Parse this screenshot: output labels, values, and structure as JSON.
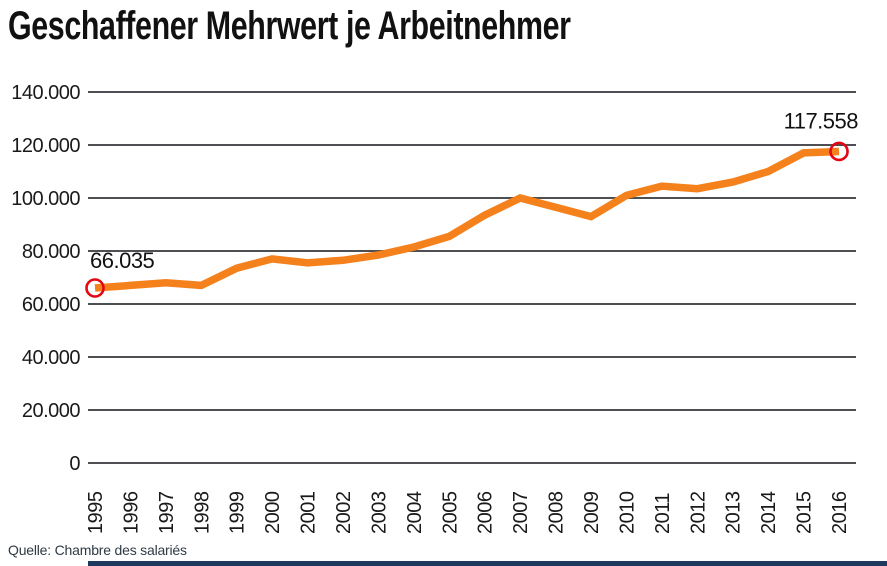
{
  "header": {
    "title": "Geschaffener Mehrwert je Arbeitnehmer"
  },
  "footer": {
    "source": "Quelle: Chambre des salariés"
  },
  "colors": {
    "line": "#F5811D",
    "circle": "#E30613",
    "grid": "#4D4F53",
    "text": "#1A1A1A",
    "footer_bar": "#1D3A5E"
  },
  "chart_data": {
    "type": "line",
    "title": "Geschaffener Mehrwert je Arbeitnehmer",
    "xlabel": "",
    "ylabel": "",
    "x": [
      1995,
      1996,
      1997,
      1998,
      1999,
      2000,
      2001,
      2002,
      2003,
      2004,
      2005,
      2006,
      2007,
      2008,
      2009,
      2010,
      2011,
      2012,
      2013,
      2014,
      2015,
      2016
    ],
    "values": [
      66035,
      67000,
      68000,
      67000,
      73500,
      77000,
      75500,
      76500,
      78500,
      81500,
      85500,
      93500,
      100000,
      96500,
      93000,
      101000,
      104500,
      103500,
      106000,
      110000,
      117000,
      117558
    ],
    "ylim": [
      0,
      140000
    ],
    "ytick_step": 20000,
    "ytick_labels": [
      "0",
      "20.000",
      "40.000",
      "60.000",
      "80.000",
      "100.000",
      "120.000",
      "140.000"
    ],
    "grid": true,
    "legend": "none",
    "annotations": [
      {
        "x": 1995,
        "value": 66035,
        "label": "66.035"
      },
      {
        "x": 2016,
        "value": 117558,
        "label": "117.558"
      }
    ]
  }
}
